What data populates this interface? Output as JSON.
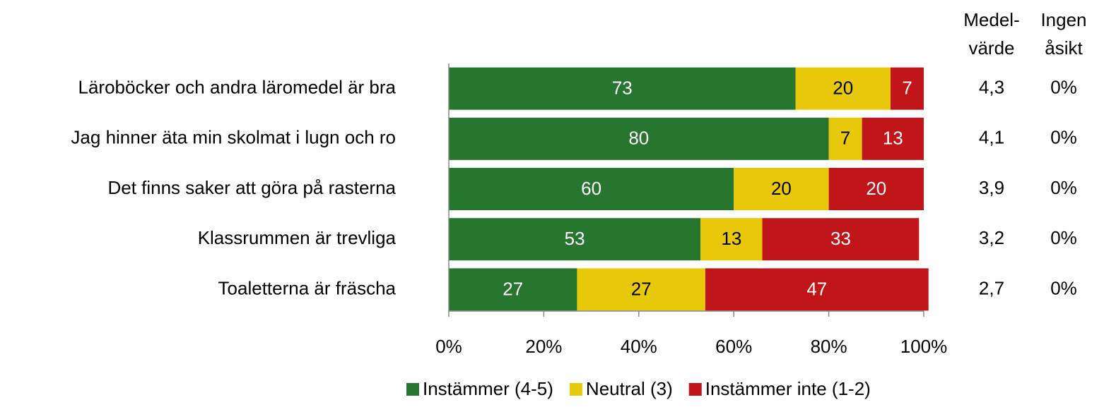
{
  "chart_data": {
    "type": "stacked_barh",
    "categories": [
      "Läroböcker och andra läromedel är bra",
      "Jag hinner äta min skolmat i lugn och ro",
      "Det finns saker att göra på rasterna",
      "Klassrummen är trevliga",
      "Toaletterna är fräscha"
    ],
    "series": [
      {
        "name": "Instämmer (4-5)",
        "color": "#267630",
        "label_color": "#ffffff",
        "values": [
          73,
          80,
          60,
          53,
          27
        ]
      },
      {
        "name": "Neutral (3)",
        "color": "#e8c80a",
        "label_color": "#000000",
        "values": [
          20,
          7,
          20,
          13,
          27
        ]
      },
      {
        "name": "Instämmer inte (1-2)",
        "color": "#c0161a",
        "label_color": "#ffffff",
        "values": [
          7,
          13,
          20,
          33,
          47
        ]
      }
    ],
    "xlim": [
      0,
      100
    ],
    "xticks": [
      {
        "value": 0,
        "label": "0%"
      },
      {
        "value": 20,
        "label": "20%"
      },
      {
        "value": 40,
        "label": "40%"
      },
      {
        "value": 60,
        "label": "60%"
      },
      {
        "value": 80,
        "label": "80%"
      },
      {
        "value": 100,
        "label": "100%"
      }
    ],
    "mean_header": [
      "Medel-",
      "värde"
    ],
    "mean_values": [
      "4,3",
      "4,1",
      "3,9",
      "3,2",
      "2,7"
    ],
    "no_opinion_header": [
      "Ingen",
      "åsikt"
    ],
    "no_opinion_values": [
      "0%",
      "0%",
      "0%",
      "0%",
      "0%"
    ],
    "legend": "bottom"
  }
}
